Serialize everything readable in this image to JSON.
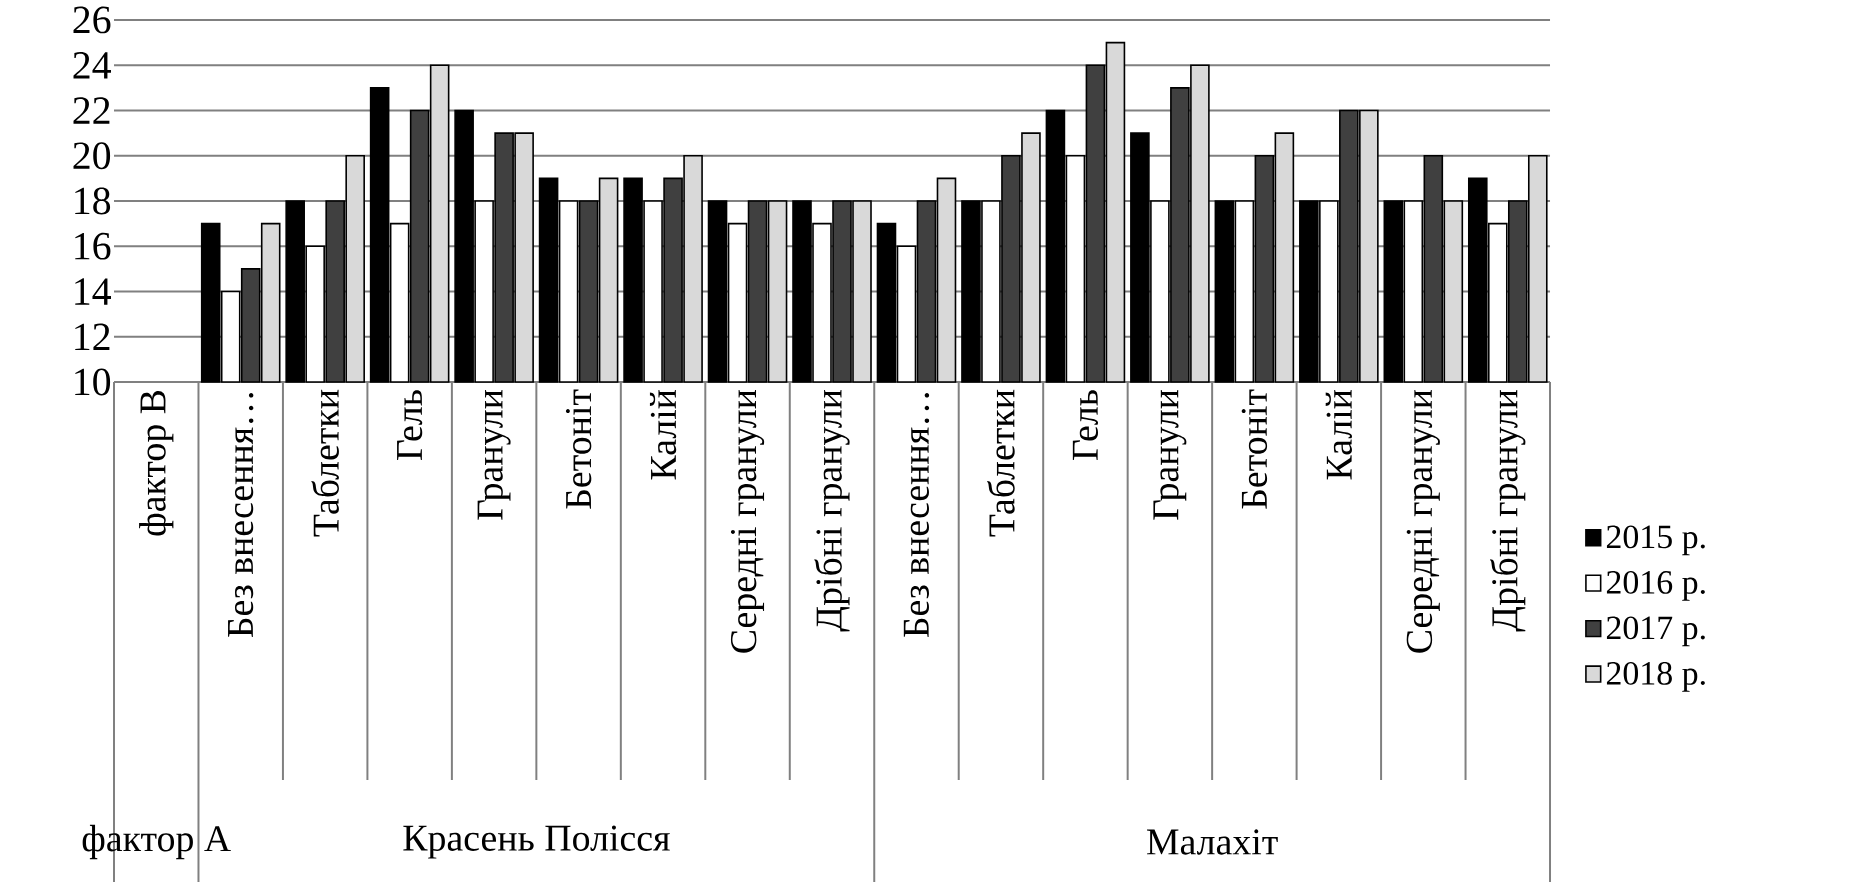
{
  "chart_data": {
    "type": "bar",
    "categories": [
      "фактор В",
      "Без внесення…",
      "Таблетки",
      "Гель",
      "Гранули",
      "Бетоніт",
      "Калій",
      "Середні гранули",
      "Дрібні гранули",
      "Без внесення…",
      "Таблетки",
      "Гель",
      "Гранули",
      "Бетоніт",
      "Калій",
      "Середні гранули",
      "Дрібні  гранули"
    ],
    "series": [
      {
        "name": "2015 р.",
        "color": "#000000",
        "values": [
          null,
          17,
          18,
          23,
          22,
          19,
          19,
          18,
          18,
          17,
          18,
          22,
          21,
          18,
          18,
          18,
          19
        ]
      },
      {
        "name": "2016 р.",
        "color": "#ffffff",
        "values": [
          null,
          14,
          16,
          17,
          18,
          18,
          18,
          17,
          17,
          16,
          18,
          20,
          18,
          18,
          18,
          18,
          17
        ]
      },
      {
        "name": "2017 р.",
        "color": "#404040",
        "values": [
          null,
          15,
          18,
          22,
          21,
          18,
          19,
          18,
          18,
          18,
          20,
          24,
          23,
          20,
          22,
          20,
          18
        ]
      },
      {
        "name": "2018 р.",
        "color": "#d9d9d9",
        "values": [
          null,
          17,
          20,
          24,
          21,
          19,
          20,
          18,
          18,
          19,
          21,
          25,
          24,
          21,
          22,
          18,
          20
        ]
      }
    ],
    "annotations": [
      "фактор А",
      "Красень Полісся",
      "Малахіт"
    ],
    "ylim": [
      10,
      26
    ],
    "yticks": [
      10,
      12,
      14,
      16,
      18,
      20,
      22,
      24,
      26
    ],
    "grid": "y",
    "legend": "right"
  }
}
